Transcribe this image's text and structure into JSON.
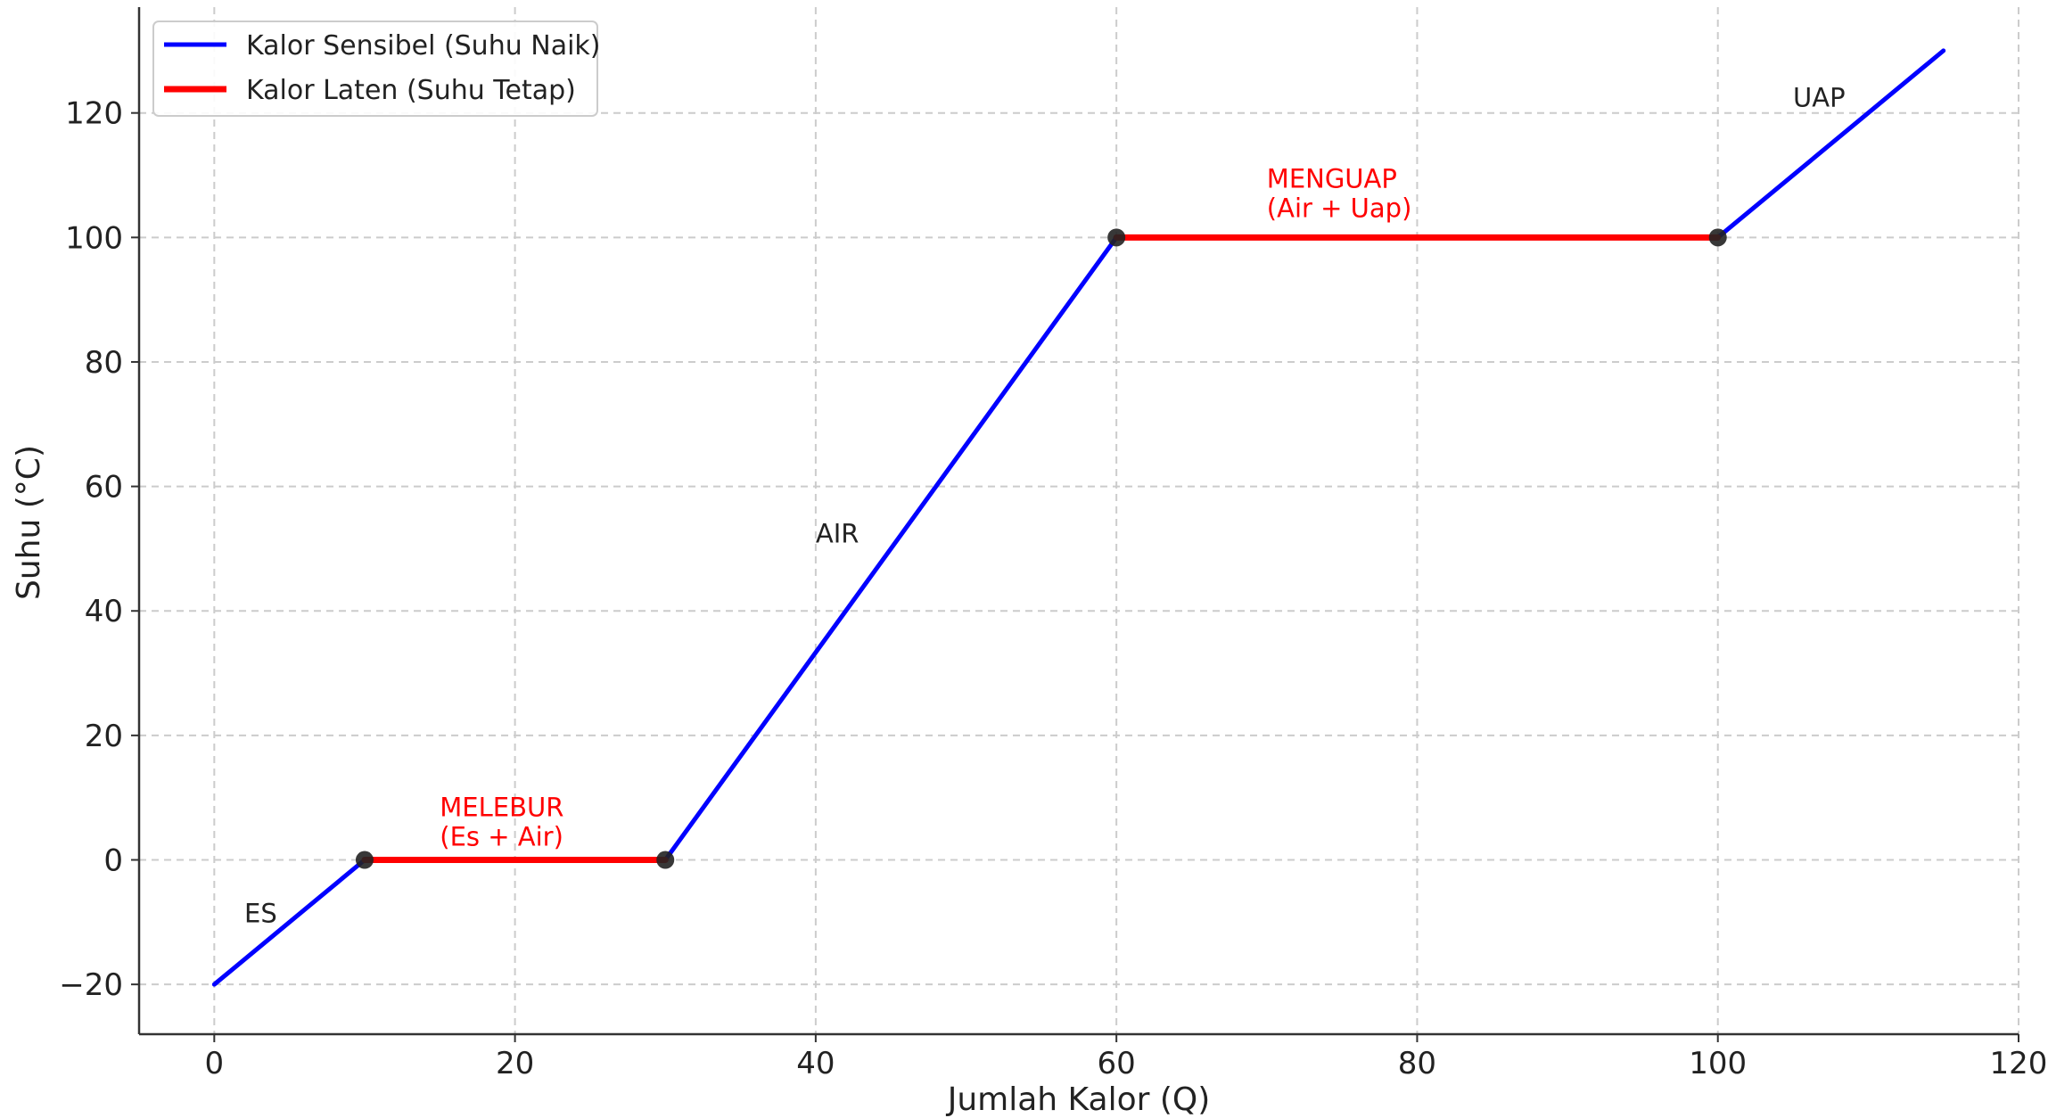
{
  "chart_data": {
    "type": "line",
    "title": "",
    "xlabel": "Jumlah Kalor (Q)",
    "ylabel": "Suhu (°C)",
    "xlim": [
      -5,
      120
    ],
    "ylim": [
      -28,
      137
    ],
    "x_ticks": [
      0,
      20,
      40,
      60,
      80,
      100,
      120
    ],
    "y_ticks": [
      -20,
      0,
      20,
      40,
      60,
      80,
      100,
      120
    ],
    "grid": true,
    "legend_position": "top-left",
    "series": [
      {
        "name": "Kalor Sensibel (Suhu Naik)",
        "color": "#0000ff",
        "segments": [
          [
            [
              0,
              -20
            ],
            [
              10,
              0
            ]
          ],
          [
            [
              30,
              0
            ],
            [
              60,
              100
            ]
          ],
          [
            [
              100,
              100
            ],
            [
              115,
              130
            ]
          ]
        ]
      },
      {
        "name": "Kalor Laten (Suhu Tetap)",
        "color": "#ff0000",
        "segments": [
          [
            [
              10,
              0
            ],
            [
              30,
              0
            ]
          ],
          [
            [
              60,
              100
            ],
            [
              100,
              100
            ]
          ]
        ]
      }
    ],
    "markers": [
      [
        10,
        0
      ],
      [
        30,
        0
      ],
      [
        60,
        100
      ],
      [
        100,
        100
      ]
    ],
    "annotations": [
      {
        "lines": [
          "ES"
        ],
        "x": 2,
        "y": -10,
        "color": "#222222"
      },
      {
        "lines": [
          "MELEBUR",
          "(Es + Air)"
        ],
        "x": 15,
        "y": 7,
        "color": "#ff0000"
      },
      {
        "lines": [
          "AIR"
        ],
        "x": 40,
        "y": 51,
        "color": "#222222"
      },
      {
        "lines": [
          "MENGUAP",
          "(Air + Uap)"
        ],
        "x": 70,
        "y": 108,
        "color": "#ff0000"
      },
      {
        "lines": [
          "UAP"
        ],
        "x": 105,
        "y": 121,
        "color": "#222222"
      }
    ]
  }
}
